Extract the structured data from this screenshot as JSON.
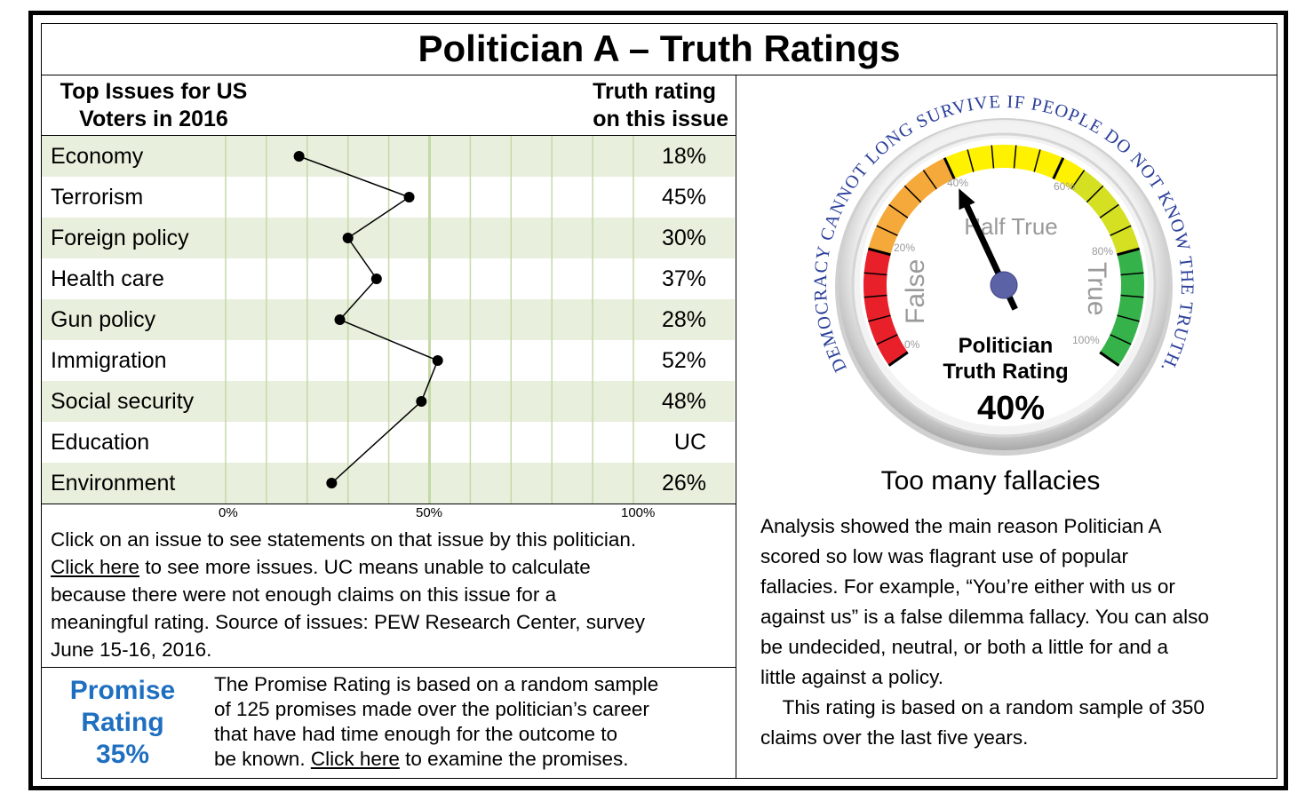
{
  "title": "Politician A – Truth Ratings",
  "issues_panel": {
    "header_left": [
      "Top Issues for US",
      "Voters in 2016"
    ],
    "header_right": [
      "Truth rating",
      "on this issue"
    ],
    "rows": [
      {
        "issue": "Economy",
        "rating": "18%"
      },
      {
        "issue": "Terrorism",
        "rating": "45%"
      },
      {
        "issue": "Foreign policy",
        "rating": "30%"
      },
      {
        "issue": "Health care",
        "rating": "37%"
      },
      {
        "issue": "Gun policy",
        "rating": "28%"
      },
      {
        "issue": "Immigration",
        "rating": "52%"
      },
      {
        "issue": "Social security",
        "rating": "48%"
      },
      {
        "issue": "Education",
        "rating": "UC"
      },
      {
        "issue": "Environment",
        "rating": "26%"
      }
    ]
  },
  "chart_data": {
    "type": "line",
    "categories": [
      "Economy",
      "Terrorism",
      "Foreign policy",
      "Health care",
      "Gun policy",
      "Immigration",
      "Social security",
      "Education",
      "Environment"
    ],
    "values": [
      18,
      45,
      30,
      37,
      28,
      52,
      48,
      null,
      26
    ],
    "xlim": [
      0,
      100
    ],
    "x_ticks": [
      "0%",
      "50%",
      "100%"
    ],
    "gridlines_every": 10,
    "grid": true,
    "orientation": "horizontal-value-axis",
    "marker": "circle",
    "line_color": "#000000",
    "grid_color": "#c5d9a8",
    "row_shade_color": "#e8efdc"
  },
  "explanation": {
    "lines": [
      {
        "text": "Click on an issue to see statements on that issue by this politician."
      },
      {
        "link": "Click here",
        "text": " to see more issues. UC means unable to calculate"
      },
      {
        "text": "because there were not enough claims on this issue for a"
      },
      {
        "text": "meaningful rating. Source of issues: PEW Research Center, survey"
      },
      {
        "text": "June 15-16, 2016."
      }
    ]
  },
  "promise": {
    "title": [
      "Promise",
      "Rating",
      "35%"
    ],
    "value_percent": 35,
    "color": "#1f6fc0",
    "lines": [
      {
        "text": "The Promise Rating is based on a random sample"
      },
      {
        "text": "of 125 promises made over the politician’s career"
      },
      {
        "text": "that have had time enough for the outcome to"
      },
      {
        "pre": "be known. ",
        "link": "Click here",
        "text": " to examine the promises."
      }
    ]
  },
  "gauge": {
    "motto": "DEMOCRACY CANNOT LONG SURVIVE IF PEOPLE DO NOT KNOW THE TRUTH.",
    "zone_labels": {
      "false": "False",
      "half_true": "Half True",
      "true": "True"
    },
    "tick_labels": [
      "0%",
      "20%",
      "40%",
      "60%",
      "80%",
      "100%"
    ],
    "caption": [
      "Politician",
      "Truth Rating"
    ],
    "value_label": "40%",
    "value_percent": 40,
    "colors": {
      "red": "#e8202a",
      "orange": "#f6a93b",
      "yellow": "#fff200",
      "yellowgreen": "#d4e021",
      "green": "#36b24a",
      "motto": "#2b3f9a",
      "hub": "#5b63a6"
    }
  },
  "verdict": "Too many fallacies",
  "analysis": {
    "lines": [
      "Analysis showed the main reason Politician A",
      "scored so low was flagrant use of popular",
      "fallacies. For example, “You’re either with us or",
      "against us” is a false dilemma fallacy. You can also",
      "be undecided, neutral, or both a little for and a",
      "little against a policy.",
      "    This rating is based on a random sample of 350",
      "claims over the last five years."
    ]
  }
}
